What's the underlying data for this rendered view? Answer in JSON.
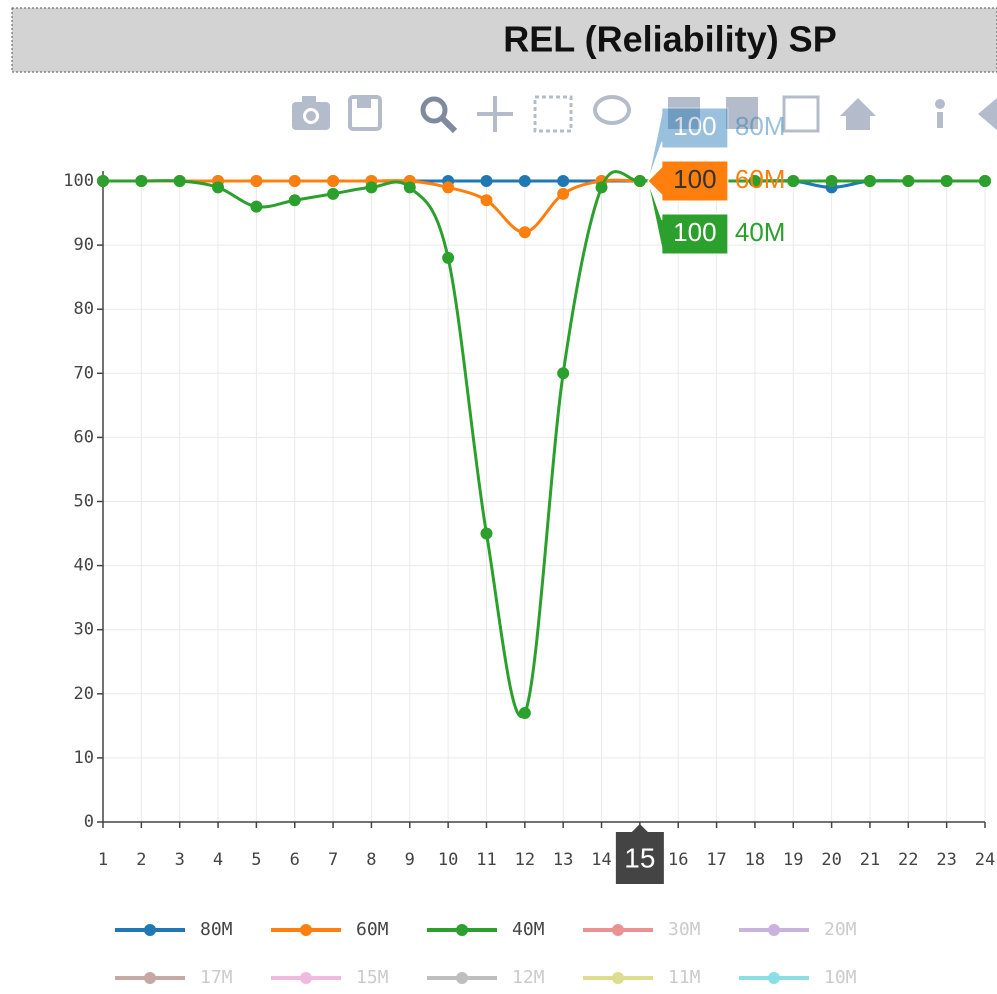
{
  "chart_data": {
    "type": "line",
    "title": "REL (Reliability) SP",
    "x": [
      1,
      2,
      3,
      4,
      5,
      6,
      7,
      8,
      9,
      10,
      11,
      12,
      13,
      14,
      15,
      16,
      17,
      18,
      19,
      20,
      21,
      22,
      23,
      24
    ],
    "series": [
      {
        "name": "80M",
        "color": "#1f77b4",
        "values": [
          100,
          100,
          100,
          100,
          100,
          100,
          100,
          100,
          100,
          100,
          100,
          100,
          100,
          100,
          100,
          100,
          100,
          100,
          100,
          99,
          100,
          100,
          100,
          100
        ]
      },
      {
        "name": "60M",
        "color": "#ff7f0e",
        "values": [
          100,
          100,
          100,
          100,
          100,
          100,
          100,
          100,
          100,
          99,
          97,
          92,
          98,
          100,
          100,
          100,
          100,
          100,
          100,
          100,
          100,
          100,
          100,
          100
        ]
      },
      {
        "name": "40M",
        "color": "#2ca02c",
        "values": [
          100,
          100,
          100,
          99,
          96,
          97,
          98,
          99,
          99,
          88,
          45,
          17,
          70,
          99,
          100,
          100,
          100,
          100,
          100,
          100,
          100,
          100,
          100,
          100
        ]
      },
      {
        "name": "30M",
        "color": "#d62728",
        "visible": false
      },
      {
        "name": "20M",
        "color": "#9467bd",
        "visible": false
      },
      {
        "name": "17M",
        "color": "#8c564b",
        "visible": false
      },
      {
        "name": "15M",
        "color": "#e377c2",
        "visible": false
      },
      {
        "name": "12M",
        "color": "#7f7f7f",
        "visible": false
      },
      {
        "name": "11M",
        "color": "#bcbd22",
        "visible": false
      },
      {
        "name": "10M",
        "color": "#17becf",
        "visible": false
      }
    ],
    "xlim": [
      1,
      24
    ],
    "xticks": [
      1,
      2,
      3,
      4,
      5,
      6,
      7,
      8,
      9,
      10,
      11,
      12,
      13,
      14,
      15,
      16,
      17,
      18,
      19,
      20,
      21,
      22,
      23,
      24
    ],
    "ylim": [
      0,
      100
    ],
    "yticks": [
      0,
      10,
      20,
      30,
      40,
      50,
      60,
      70,
      80,
      90,
      100
    ],
    "grid": true,
    "smooth": true,
    "legend": "bottom",
    "hover": {
      "x": 15,
      "values": [
        100,
        100,
        100
      ]
    }
  }
}
